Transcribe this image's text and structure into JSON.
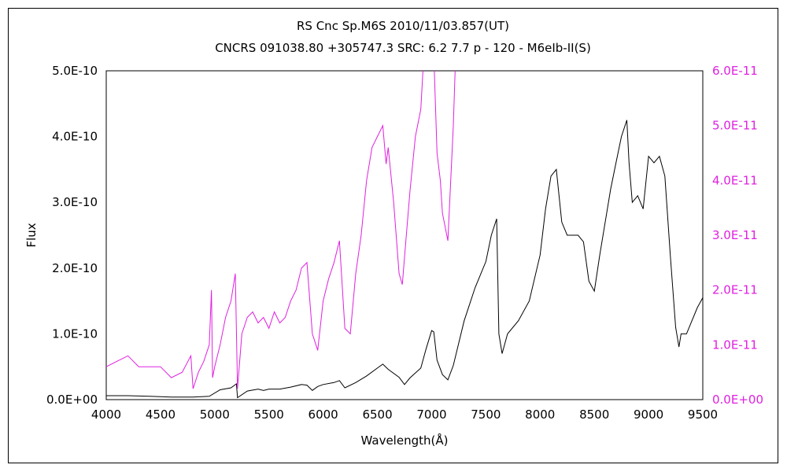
{
  "chart_data": {
    "type": "line",
    "title": "RS Cnc   Sp.M6S   2010/11/03.857(UT)",
    "subtitle": "CNCRS 091038.80 +305747.3 SRC: 6.2 7.7 p - 120 - M6eIb-II(S)",
    "xlabel": "Wavelength(Å)",
    "ylabel": "Flux",
    "xlim": [
      4000,
      9500
    ],
    "ylim_left": [
      0,
      5e-10
    ],
    "ylim_right": [
      0,
      6e-11
    ],
    "x_ticks": [
      "4000",
      "4500",
      "5000",
      "5500",
      "6000",
      "6500",
      "7000",
      "7500",
      "8000",
      "8500",
      "9000",
      "9500"
    ],
    "y_left_ticks": [
      "0.0E+00",
      "1.0E-10",
      "2.0E-10",
      "3.0E-10",
      "4.0E-10",
      "5.0E-10"
    ],
    "y_right_ticks": [
      "0.0E+00",
      "1.0E-11",
      "2.0E-11",
      "3.0E-11",
      "4.0E-11",
      "5.0E-11",
      "6.0E-11"
    ],
    "grid": false,
    "colors": {
      "black_series": "#000000",
      "magenta_series": "#e020e0",
      "axis": "#000000"
    },
    "series": [
      {
        "axis": "left",
        "color": "#000000",
        "x": [
          4000,
          4200,
          4400,
          4600,
          4800,
          4950,
          5050,
          5150,
          5200,
          5210,
          5300,
          5400,
          5450,
          5500,
          5600,
          5700,
          5800,
          5850,
          5900,
          5950,
          6000,
          6100,
          6150,
          6200,
          6300,
          6400,
          6500,
          6550,
          6600,
          6700,
          6750,
          6800,
          6900,
          6950,
          7000,
          7020,
          7050,
          7100,
          7150,
          7200,
          7300,
          7400,
          7500,
          7550,
          7600,
          7620,
          7650,
          7700,
          7800,
          7900,
          8000,
          8050,
          8100,
          8150,
          8200,
          8250,
          8300,
          8350,
          8400,
          8450,
          8500,
          8550,
          8600,
          8650,
          8700,
          8750,
          8800,
          8820,
          8850,
          8900,
          8950,
          9000,
          9050,
          9100,
          9150,
          9200,
          9250,
          9280,
          9300,
          9350,
          9400,
          9450,
          9500
        ],
        "y": [
          6e-12,
          6e-12,
          5e-12,
          4e-12,
          4e-12,
          5e-12,
          1.5e-11,
          1.8e-11,
          2.4e-11,
          3e-12,
          1.3e-11,
          1.6e-11,
          1.4e-11,
          1.6e-11,
          1.6e-11,
          1.9e-11,
          2.3e-11,
          2.2e-11,
          1.4e-11,
          2e-11,
          2.3e-11,
          2.6e-11,
          2.9e-11,
          1.8e-11,
          2.6e-11,
          3.6e-11,
          4.8e-11,
          5.4e-11,
          4.6e-11,
          3.4e-11,
          2.3e-11,
          3.3e-11,
          4.8e-11,
          7.8e-11,
          1.05e-10,
          1.03e-10,
          6e-11,
          3.8e-11,
          3e-11,
          5.2e-11,
          1.2e-10,
          1.7e-10,
          2.1e-10,
          2.5e-10,
          2.75e-10,
          1e-10,
          7e-11,
          1e-10,
          1.2e-10,
          1.5e-10,
          2.2e-10,
          2.9e-10,
          3.4e-10,
          3.5e-10,
          2.7e-10,
          2.5e-10,
          2.5e-10,
          2.5e-10,
          2.4e-10,
          1.8e-10,
          1.65e-10,
          2.2e-10,
          2.7e-10,
          3.2e-10,
          3.6e-10,
          4e-10,
          4.25e-10,
          3.6e-10,
          3e-10,
          3.1e-10,
          2.9e-10,
          3.7e-10,
          3.6e-10,
          3.7e-10,
          3.4e-10,
          2.2e-10,
          1.1e-10,
          8e-11,
          1e-10,
          1e-10,
          1.2e-10,
          1.4e-10,
          1.55e-10
        ]
      },
      {
        "axis": "right",
        "color": "#e020e0",
        "x": [
          4000,
          4100,
          4200,
          4300,
          4400,
          4500,
          4600,
          4700,
          4780,
          4800,
          4850,
          4900,
          4950,
          4970,
          4980,
          5000,
          5050,
          5100,
          5150,
          5190,
          5210,
          5250,
          5300,
          5350,
          5400,
          5450,
          5500,
          5550,
          5600,
          5650,
          5700,
          5750,
          5800,
          5850,
          5900,
          5950,
          6000,
          6050,
          6100,
          6150,
          6200,
          6250,
          6300,
          6350,
          6400,
          6450,
          6500,
          6550,
          6580,
          6600,
          6650,
          6700,
          6730,
          6750,
          6800,
          6850,
          6900,
          6920,
          6950,
          7000,
          7050,
          7080,
          7100,
          7150,
          7200,
          7250
        ],
        "y": [
          6e-12,
          7e-12,
          8e-12,
          6e-12,
          6e-12,
          6e-12,
          4e-12,
          5e-12,
          8e-12,
          2e-12,
          5e-12,
          7e-12,
          1e-11,
          2e-11,
          4e-12,
          6e-12,
          1e-11,
          1.5e-11,
          1.8e-11,
          2.3e-11,
          2e-12,
          1.2e-11,
          1.5e-11,
          1.6e-11,
          1.4e-11,
          1.5e-11,
          1.3e-11,
          1.6e-11,
          1.4e-11,
          1.5e-11,
          1.8e-11,
          2e-11,
          2.4e-11,
          2.5e-11,
          1.2e-11,
          9e-12,
          1.8e-11,
          2.2e-11,
          2.5e-11,
          2.9e-11,
          1.3e-11,
          1.2e-11,
          2.3e-11,
          3e-11,
          4e-11,
          4.6e-11,
          4.8e-11,
          5e-11,
          4.3e-11,
          4.6e-11,
          3.6e-11,
          2.3e-11,
          2.1e-11,
          2.6e-11,
          3.8e-11,
          4.8e-11,
          5.3e-11,
          6e-11,
          6.5e-11,
          7.5e-11,
          4.5e-11,
          4e-11,
          3.4e-11,
          2.9e-11,
          5e-11,
          8e-11
        ]
      }
    ]
  }
}
